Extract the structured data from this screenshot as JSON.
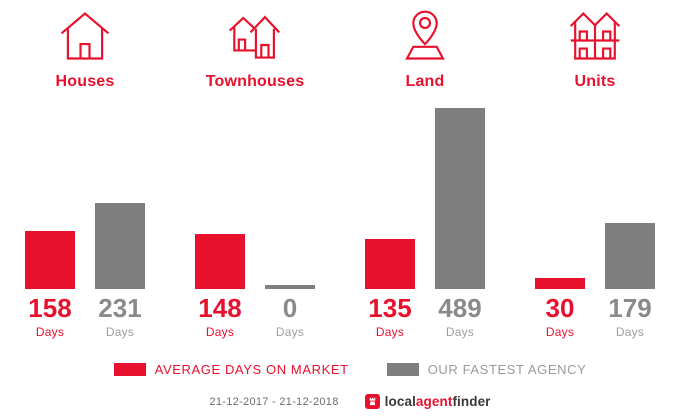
{
  "chart_data": {
    "type": "bar",
    "title": "",
    "categories": [
      "Houses",
      "Townhouses",
      "Land",
      "Units"
    ],
    "category_icons": [
      "house-icon",
      "townhouses-icon",
      "land-pin-icon",
      "units-icon"
    ],
    "series": [
      {
        "name": "AVERAGE DAYS ON MARKET",
        "color": "#e8112d",
        "values": [
          158,
          148,
          135,
          30
        ]
      },
      {
        "name": "OUR FASTEST AGENCY",
        "color": "#7f7f7f",
        "values": [
          231,
          0,
          489,
          179
        ]
      }
    ],
    "value_suffix": "Days",
    "ylim": [
      0,
      489
    ],
    "grid": false,
    "legend_position": "bottom"
  },
  "colors": {
    "accent_red": "#e8112d",
    "bar_gray": "#7f7f7f",
    "number_gray": "#8a8a8a",
    "unit_gray": "#9e9e9e",
    "legend_gray_text": "#9a9a9a",
    "footer_text": "#6e6e6e",
    "logo_dark": "#3a373c"
  },
  "footer": {
    "date_range": "21-12-2017 - 21-12-2018",
    "logo": {
      "icon": "castle-icon",
      "parts": [
        {
          "text": "local",
          "color": "#3a373c"
        },
        {
          "text": "agent",
          "color": "#e8112d"
        },
        {
          "text": "finder",
          "color": "#3a373c"
        }
      ]
    }
  }
}
